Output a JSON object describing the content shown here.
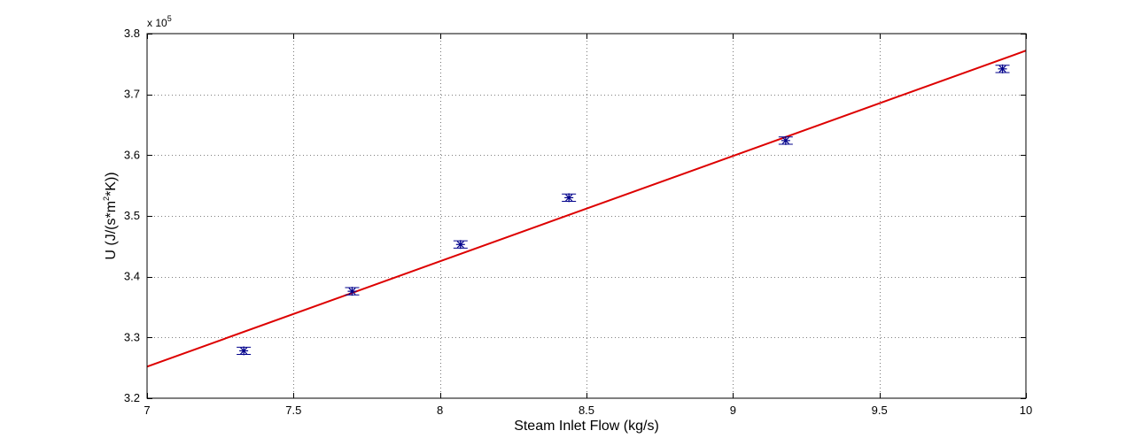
{
  "chart_data": {
    "type": "scatter",
    "xlabel": "Steam Inlet Flow (kg/s)",
    "ylabel_parts": [
      "U (J/(s*m",
      "2",
      "*K))"
    ],
    "y_multiplier": {
      "base": "x 10",
      "exponent": "5"
    },
    "xlim": [
      7,
      10
    ],
    "ylim": [
      3.2,
      3.8
    ],
    "x_ticks": [
      7,
      7.5,
      8,
      8.5,
      9,
      9.5,
      10
    ],
    "x_tick_labels": [
      "7",
      "7.5",
      "8",
      "8.5",
      "9",
      "9.5",
      "10"
    ],
    "y_ticks": [
      3.2,
      3.3,
      3.4,
      3.5,
      3.6,
      3.7,
      3.8
    ],
    "y_tick_labels": [
      "3.2",
      "3.3",
      "3.4",
      "3.5",
      "3.6",
      "3.7",
      "3.8"
    ],
    "grid": true,
    "series": [
      {
        "kind": "points_with_error",
        "marker": "asterisk",
        "color": "#00008b",
        "x": [
          7.33,
          7.7,
          8.07,
          8.44,
          9.18,
          9.92
        ],
        "y": [
          3.278,
          3.376,
          3.453,
          3.53,
          3.624,
          3.742
        ],
        "error": [
          0.006,
          0.006,
          0.006,
          0.006,
          0.006,
          0.006
        ]
      },
      {
        "kind": "fit_line",
        "color": "#dd0000",
        "x": [
          7,
          10
        ],
        "y": [
          3.252,
          3.772
        ]
      }
    ]
  }
}
